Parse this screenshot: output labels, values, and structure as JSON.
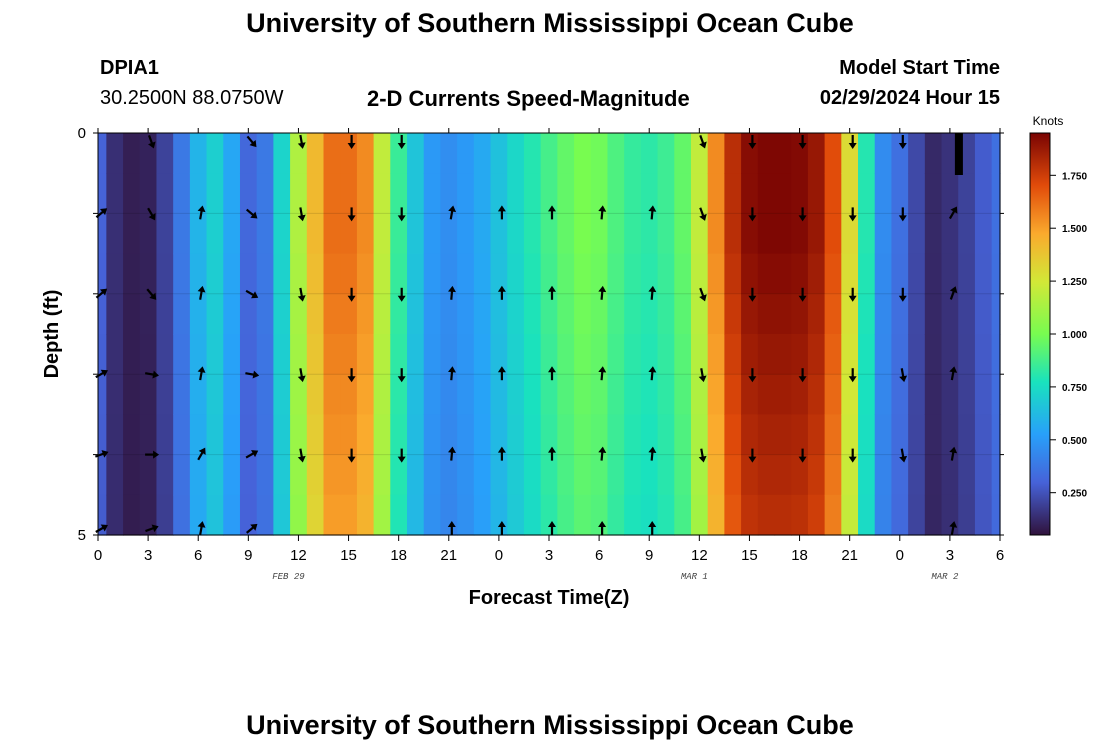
{
  "page": {
    "title": "University of Southern Mississippi Ocean Cube",
    "footer_title": "University of Southern Mississippi Ocean Cube",
    "station": "DPIA1",
    "coords": "30.2500N  88.0750W",
    "subtitle": "2-D Currents Speed-Magnitude",
    "model_start_label": "Model Start Time",
    "model_start_value": "02/29/2024 Hour 15"
  },
  "chart_data": {
    "type": "heatmap",
    "title": "2-D Currents Speed-Magnitude",
    "xlabel": "Forecast Time(Z)",
    "ylabel": "Depth (ft)",
    "x_ticks": [
      "0",
      "3",
      "6",
      "9",
      "12",
      "15",
      "18",
      "21",
      "0",
      "3",
      "6",
      "9",
      "12",
      "15",
      "18",
      "21",
      "0",
      "3",
      "6"
    ],
    "date_labels": [
      {
        "text": "FEB 29",
        "tick_index": 3.8
      },
      {
        "text": "MAR 1",
        "tick_index": 11.9
      },
      {
        "text": "MAR 2",
        "tick_index": 16.9
      }
    ],
    "y_ticks": [
      "0",
      "5"
    ],
    "ylim": [
      0,
      5
    ],
    "colorbar": {
      "label": "Knots",
      "range": [
        0.05,
        1.95
      ],
      "ticks": [
        "0.250",
        "0.500",
        "0.750",
        "1.000",
        "1.250",
        "1.500",
        "1.750"
      ],
      "tick_values": [
        0.25,
        0.5,
        0.75,
        1.0,
        1.25,
        1.5,
        1.75
      ]
    },
    "hours": [
      0,
      1,
      2,
      3,
      4,
      5,
      6,
      7,
      8,
      9,
      10,
      11,
      12,
      13,
      14,
      15,
      16,
      17,
      18,
      19,
      20,
      21,
      22,
      23,
      24,
      25,
      26,
      27,
      28,
      29,
      30,
      31,
      32,
      33,
      34,
      35,
      36,
      37,
      38,
      39,
      40,
      41,
      42,
      43,
      44,
      45,
      46,
      47,
      48,
      49,
      50,
      51,
      52,
      53,
      54
    ],
    "speed_profile_knots": [
      0.3,
      0.14,
      0.09,
      0.1,
      0.2,
      0.38,
      0.6,
      0.7,
      0.55,
      0.32,
      0.38,
      0.72,
      1.15,
      1.42,
      1.62,
      1.62,
      1.55,
      1.2,
      0.85,
      0.66,
      0.5,
      0.46,
      0.5,
      0.56,
      0.65,
      0.73,
      0.8,
      0.88,
      0.95,
      1.0,
      0.98,
      0.9,
      0.84,
      0.82,
      0.86,
      0.95,
      1.2,
      1.55,
      1.8,
      1.92,
      1.94,
      1.94,
      1.93,
      1.88,
      1.7,
      1.3,
      0.8,
      0.45,
      0.35,
      0.22,
      0.12,
      0.15,
      0.2,
      0.28,
      0.35
    ],
    "depth_rows_ft": [
      0.25,
      0.75,
      1.25,
      1.75,
      2.25,
      2.75,
      3.25,
      3.75,
      4.25,
      4.75
    ],
    "depth_factors": [
      1.0,
      1.0,
      1.0,
      0.99,
      0.98,
      0.97,
      0.96,
      0.95,
      0.94,
      0.93
    ],
    "arrow_hours": [
      0,
      3,
      6,
      9,
      12,
      15,
      18,
      21,
      24,
      27,
      30,
      33,
      36,
      39,
      42,
      45,
      48,
      51
    ],
    "arrow_rows": [
      {
        "depth_ft": 0.0,
        "dirs": [
          null,
          160,
          null,
          140,
          170,
          180,
          180,
          null,
          null,
          null,
          null,
          null,
          160,
          180,
          180,
          180,
          180,
          null
        ]
      },
      {
        "depth_ft": 1.0,
        "dirs": [
          50,
          150,
          10,
          130,
          170,
          180,
          180,
          10,
          0,
          0,
          5,
          5,
          160,
          180,
          180,
          180,
          180,
          30
        ]
      },
      {
        "depth_ft": 2.0,
        "dirs": [
          50,
          140,
          10,
          120,
          170,
          180,
          180,
          5,
          0,
          0,
          5,
          5,
          160,
          180,
          180,
          180,
          180,
          20
        ]
      },
      {
        "depth_ft": 3.0,
        "dirs": [
          60,
          100,
          10,
          100,
          170,
          180,
          180,
          5,
          0,
          0,
          5,
          5,
          170,
          180,
          180,
          180,
          170,
          10
        ]
      },
      {
        "depth_ft": 4.0,
        "dirs": [
          70,
          90,
          30,
          60,
          170,
          180,
          180,
          5,
          0,
          0,
          5,
          5,
          170,
          180,
          180,
          180,
          170,
          10
        ]
      },
      {
        "depth_ft": 5.0,
        "dirs": [
          60,
          70,
          10,
          50,
          null,
          null,
          null,
          0,
          0,
          0,
          0,
          0,
          null,
          null,
          null,
          null,
          null,
          10
        ]
      }
    ]
  }
}
